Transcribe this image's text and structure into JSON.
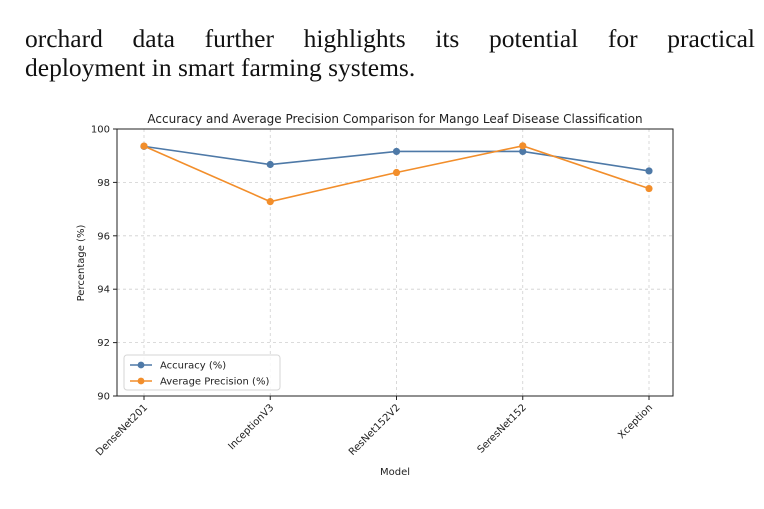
{
  "document": {
    "paragraph_line1": "orchard data further highlights its potential for practical",
    "paragraph_line2": "deployment in smart farming systems."
  },
  "chart_data": {
    "type": "line",
    "title": "Accuracy and Average Precision Comparison for Mango Leaf Disease Classification",
    "xlabel": "Model",
    "ylabel": "Percentage (%)",
    "categories": [
      "DenseNet201",
      "InceptionV3",
      "ResNet152V2",
      "SeresNet152",
      "Xception"
    ],
    "ylim": [
      90,
      100
    ],
    "yticks": [
      90,
      92,
      94,
      96,
      98,
      100
    ],
    "grid": true,
    "legend_position": "lower-left",
    "series": [
      {
        "name": "Accuracy (%)",
        "color": "#4e79a7",
        "values": [
          99.35,
          98.67,
          99.16,
          99.16,
          98.43
        ]
      },
      {
        "name": "Average Precision (%)",
        "color": "#f28e2b",
        "values": [
          99.36,
          97.28,
          98.37,
          99.37,
          97.77
        ]
      }
    ]
  }
}
